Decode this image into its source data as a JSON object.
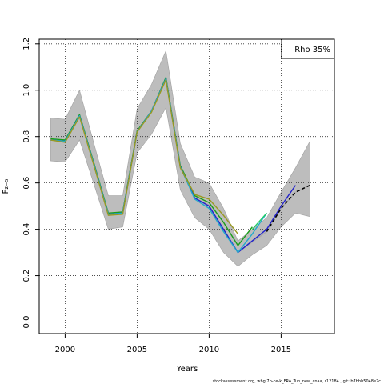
{
  "chart_data": {
    "type": "line",
    "xlabel": "Years",
    "ylabel": "F₂₋₅",
    "xlim": [
      1998.2,
      2018.7
    ],
    "ylim": [
      -0.05,
      1.22
    ],
    "x_ticks": [
      2000,
      2005,
      2010,
      2015
    ],
    "y_ticks": [
      0.0,
      0.2,
      0.4,
      0.6,
      0.8,
      1.0,
      1.2
    ],
    "y_tick_labels": [
      "0.0",
      "0.2",
      "0.4",
      "0.6",
      "0.8",
      "1.0",
      "1.2"
    ],
    "grid": true,
    "legend": {
      "text": "Rho 35%",
      "placement": "top-right"
    },
    "footer": "stockassessment.org, whg.7b-ce-k_FRA_Tun_new_cnaa, r12184 , git: b7bbb5048e7c",
    "confidence_band": {
      "x": [
        1999,
        2000,
        2001,
        2002,
        2003,
        2004,
        2005,
        2006,
        2007,
        2008,
        2009,
        2010,
        2011,
        2012,
        2013,
        2014,
        2015,
        2016,
        2017
      ],
      "upper": [
        0.88,
        0.875,
        1.0,
        0.77,
        0.545,
        0.545,
        0.92,
        1.025,
        1.17,
        0.77,
        0.625,
        0.6,
        0.49,
        0.35,
        0.4,
        0.45,
        0.56,
        0.665,
        0.78
      ],
      "lower": [
        0.695,
        0.69,
        0.785,
        0.595,
        0.4,
        0.41,
        0.73,
        0.81,
        0.925,
        0.57,
        0.45,
        0.4,
        0.3,
        0.24,
        0.29,
        0.33,
        0.41,
        0.47,
        0.455
      ]
    },
    "series": [
      {
        "color": "#ababab",
        "x": [
          1999,
          2000,
          2001,
          2002,
          2003,
          2004,
          2005,
          2006,
          2007,
          2008,
          2009,
          2010,
          2011,
          2012,
          2013,
          2014,
          2015,
          2016,
          2017
        ],
        "values": [
          0.785,
          0.78,
          0.89,
          0.68,
          0.465,
          0.47,
          0.82,
          0.91,
          1.05,
          0.67,
          0.535,
          0.505,
          0.395,
          0.3,
          0.345,
          0.39,
          0.49,
          0.56,
          0.59
        ]
      },
      {
        "color": "#1a9e1a",
        "x": [
          1999,
          2000,
          2001,
          2002,
          2003,
          2004,
          2005,
          2006,
          2007,
          2008,
          2009,
          2010,
          2011,
          2012,
          2013
        ],
        "values": [
          0.79,
          0.785,
          0.895,
          0.685,
          0.47,
          0.475,
          0.825,
          0.91,
          1.055,
          0.675,
          0.545,
          0.515,
          0.43,
          0.33,
          0.41
        ]
      },
      {
        "color": "#2222cc",
        "x": [
          1999,
          2000,
          2001,
          2002,
          2003,
          2004,
          2005,
          2006,
          2007,
          2008,
          2009,
          2010,
          2011,
          2012,
          2013,
          2014,
          2015,
          2016
        ],
        "values": [
          0.785,
          0.78,
          0.89,
          0.68,
          0.465,
          0.47,
          0.82,
          0.91,
          1.05,
          0.67,
          0.535,
          0.5,
          0.4,
          0.3,
          0.35,
          0.4,
          0.5,
          0.59
        ]
      },
      {
        "color": "#22aacc",
        "x": [
          1999,
          2000,
          2001,
          2002,
          2003,
          2004,
          2005,
          2006,
          2007,
          2008,
          2009,
          2010,
          2011,
          2012,
          2013,
          2014
        ],
        "values": [
          0.785,
          0.78,
          0.89,
          0.68,
          0.465,
          0.47,
          0.82,
          0.91,
          1.05,
          0.67,
          0.53,
          0.49,
          0.39,
          0.3,
          0.38,
          0.47
        ]
      },
      {
        "color": "#22cc66",
        "x": [
          2013,
          2014
        ],
        "values": [
          0.4,
          0.47
        ]
      },
      {
        "color": "#999922",
        "x": [
          1999,
          2000,
          2001,
          2002,
          2003,
          2004,
          2005,
          2006,
          2007,
          2008,
          2009,
          2010,
          2011,
          2012
        ],
        "values": [
          0.785,
          0.775,
          0.885,
          0.675,
          0.46,
          0.465,
          0.82,
          0.905,
          1.045,
          0.665,
          0.55,
          0.53,
          0.46,
          0.38
        ]
      },
      {
        "color": "#000000",
        "dashed": true,
        "x": [
          2014,
          2015,
          2016,
          2017
        ],
        "values": [
          0.39,
          0.49,
          0.56,
          0.59
        ]
      }
    ]
  }
}
